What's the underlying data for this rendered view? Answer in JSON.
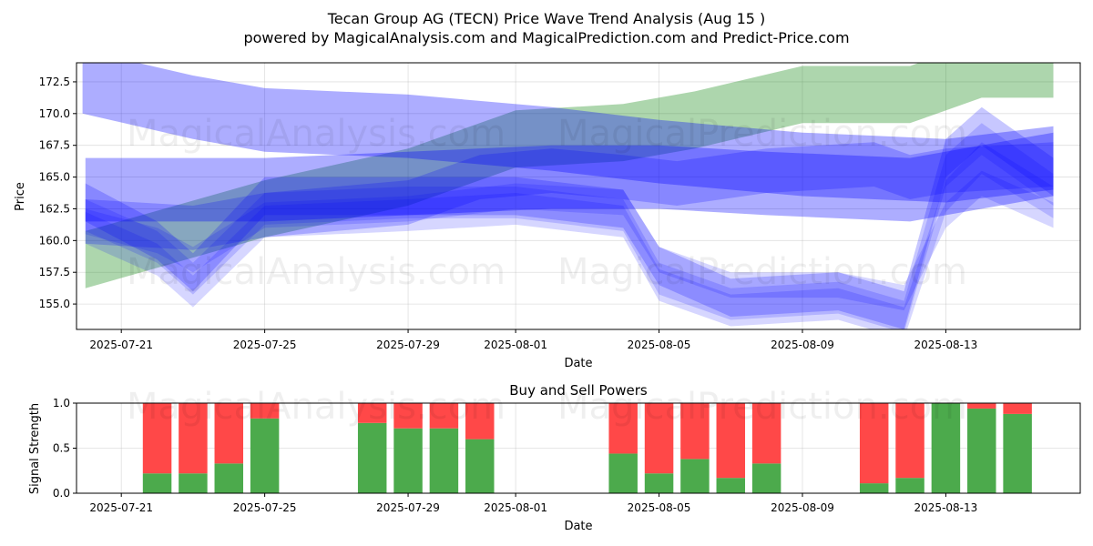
{
  "titles": {
    "main": "Tecan Group AG (TECN) Price Wave Trend Analysis (Aug 15 )",
    "sub": "powered by MagicalAnalysis.com and MagicalPrediction.com and Predict-Price.com"
  },
  "watermarks": [
    "MagicalAnalysis.com",
    "MagicalPrediction.com"
  ],
  "colors": {
    "blue": "#0000ff",
    "green": "#008000",
    "buy": "#4caa4c",
    "sell": "#ff4848"
  },
  "chart_data": [
    {
      "type": "area",
      "xlabel": "Date",
      "ylabel": "Price",
      "ylim": [
        153,
        174
      ],
      "xlim": [
        "2025-07-19T18:00",
        "2025-08-16T18:00"
      ],
      "xticks": [
        "2025-07-21",
        "2025-07-25",
        "2025-07-29",
        "2025-08-01",
        "2025-08-05",
        "2025-08-09",
        "2025-08-13"
      ],
      "yticks": [
        155.0,
        157.5,
        160.0,
        162.5,
        165.0,
        167.5,
        170.0,
        172.5
      ],
      "grid": true,
      "bands": [
        {
          "color": "green",
          "x": [
            "2025-07-20",
            "2025-07-25",
            "2025-07-29",
            "2025-08-01",
            "2025-08-04",
            "2025-08-06",
            "2025-08-09",
            "2025-08-12",
            "2025-08-14",
            "2025-08-16"
          ],
          "mid": [
            158.5,
            162.5,
            165.0,
            168.0,
            168.5,
            169.5,
            171.5,
            171.5,
            173.5,
            173.5
          ],
          "width": 4.5
        },
        {
          "color": "blue",
          "x": [
            "2025-07-19T22:00",
            "2025-07-23",
            "2025-07-25",
            "2025-07-29",
            "2025-08-02",
            "2025-08-05",
            "2025-08-09",
            "2025-08-13",
            "2025-08-16"
          ],
          "mid": [
            172.5,
            170.5,
            169.5,
            169.0,
            168.0,
            167.0,
            166.0,
            165.5,
            166.5
          ],
          "width": 5.0
        },
        {
          "color": "blue",
          "x": [
            "2025-07-20",
            "2025-07-25",
            "2025-07-29",
            "2025-08-02",
            "2025-08-05",
            "2025-08-08",
            "2025-08-12",
            "2025-08-16"
          ],
          "mid": [
            164.0,
            164.0,
            164.5,
            165.0,
            165.0,
            164.5,
            164.0,
            166.0
          ],
          "width": 5.0
        },
        {
          "color": "blue",
          "x": [
            "2025-07-20",
            "2025-07-23",
            "2025-07-25",
            "2025-07-29",
            "2025-07-31",
            "2025-08-02",
            "2025-08-04",
            "2025-08-05T12:00",
            "2025-08-08",
            "2025-08-11",
            "2025-08-12",
            "2025-08-13",
            "2025-08-16"
          ],
          "mid": [
            161.5,
            161.0,
            162.0,
            163.0,
            165.0,
            165.5,
            165.0,
            164.5,
            165.5,
            166.0,
            165.0,
            165.5,
            166.0
          ],
          "width": 3.5
        },
        {
          "color": "blue",
          "x": [
            "2025-07-20",
            "2025-07-22",
            "2025-07-23",
            "2025-07-25",
            "2025-07-29",
            "2025-08-01",
            "2025-08-04",
            "2025-08-05",
            "2025-08-07",
            "2025-08-10",
            "2025-08-11T20:00",
            "2025-08-13",
            "2025-08-14",
            "2025-08-16"
          ],
          "mid": [
            163.0,
            160.0,
            157.5,
            163.5,
            163.5,
            163.5,
            162.5,
            158.0,
            155.5,
            156.0,
            154.5,
            166.5,
            169.0,
            165.0
          ],
          "width": 3.0
        },
        {
          "color": "blue",
          "x": [
            "2025-07-20",
            "2025-07-22",
            "2025-07-23",
            "2025-07-25",
            "2025-07-29",
            "2025-08-01",
            "2025-08-04",
            "2025-08-05",
            "2025-08-07",
            "2025-08-10",
            "2025-08-11T20:00",
            "2025-08-13",
            "2025-08-14",
            "2025-08-16"
          ],
          "mid": [
            162.0,
            159.5,
            157.0,
            162.5,
            163.0,
            163.0,
            162.0,
            157.0,
            155.0,
            155.5,
            154.0,
            165.5,
            168.0,
            164.0
          ],
          "width": 2.5
        },
        {
          "color": "blue",
          "x": [
            "2025-07-20",
            "2025-07-22",
            "2025-07-23",
            "2025-07-25",
            "2025-07-29",
            "2025-08-01",
            "2025-08-04",
            "2025-08-05",
            "2025-08-07",
            "2025-08-10",
            "2025-08-11T20:00",
            "2025-08-13",
            "2025-08-14",
            "2025-08-16"
          ],
          "mid": [
            161.0,
            158.5,
            156.0,
            161.5,
            162.0,
            162.5,
            161.5,
            156.5,
            154.5,
            155.0,
            153.5,
            163.5,
            166.5,
            163.0
          ],
          "width": 2.5
        },
        {
          "color": "blue",
          "x": [
            "2025-07-20",
            "2025-07-22",
            "2025-07-23",
            "2025-07-25",
            "2025-07-29",
            "2025-08-01",
            "2025-08-04",
            "2025-08-05",
            "2025-08-07",
            "2025-08-10",
            "2025-08-11T20:00",
            "2025-08-13",
            "2025-08-14",
            "2025-08-16"
          ],
          "mid": [
            161.5,
            160.0,
            158.5,
            162.0,
            162.5,
            163.5,
            163.0,
            158.5,
            156.5,
            156.5,
            155.5,
            162.0,
            164.5,
            162.0
          ],
          "width": 2.0
        }
      ]
    },
    {
      "type": "bar",
      "title": "Buy and Sell Powers",
      "xlabel": "Date",
      "ylabel": "Signal Strength",
      "ylim": [
        0,
        1.0
      ],
      "yticks": [
        0.0,
        0.5,
        1.0
      ],
      "xticks": [
        "2025-07-21",
        "2025-07-25",
        "2025-07-29",
        "2025-08-01",
        "2025-08-05",
        "2025-08-09",
        "2025-08-13"
      ],
      "xlim": [
        "2025-07-19T18:00",
        "2025-08-16T18:00"
      ],
      "x": [
        "2025-07-22",
        "2025-07-23",
        "2025-07-24",
        "2025-07-25",
        "2025-07-28",
        "2025-07-29",
        "2025-07-30",
        "2025-07-31",
        "2025-08-04",
        "2025-08-05",
        "2025-08-06",
        "2025-08-07",
        "2025-08-08",
        "2025-08-11",
        "2025-08-12",
        "2025-08-13",
        "2025-08-14",
        "2025-08-15"
      ],
      "series": [
        {
          "values": [
            0.22,
            0.22,
            0.33,
            0.83,
            0.78,
            0.72,
            0.72,
            0.6,
            0.44,
            0.22,
            0.38,
            0.17,
            0.33,
            0.11,
            0.17,
            1.0,
            0.94,
            0.88
          ]
        },
        {
          "values": [
            0.78,
            0.78,
            0.67,
            0.17,
            0.22,
            0.28,
            0.28,
            0.4,
            0.56,
            0.78,
            0.62,
            0.83,
            0.67,
            0.89,
            0.83,
            0.0,
            0.06,
            0.12
          ]
        }
      ]
    }
  ]
}
